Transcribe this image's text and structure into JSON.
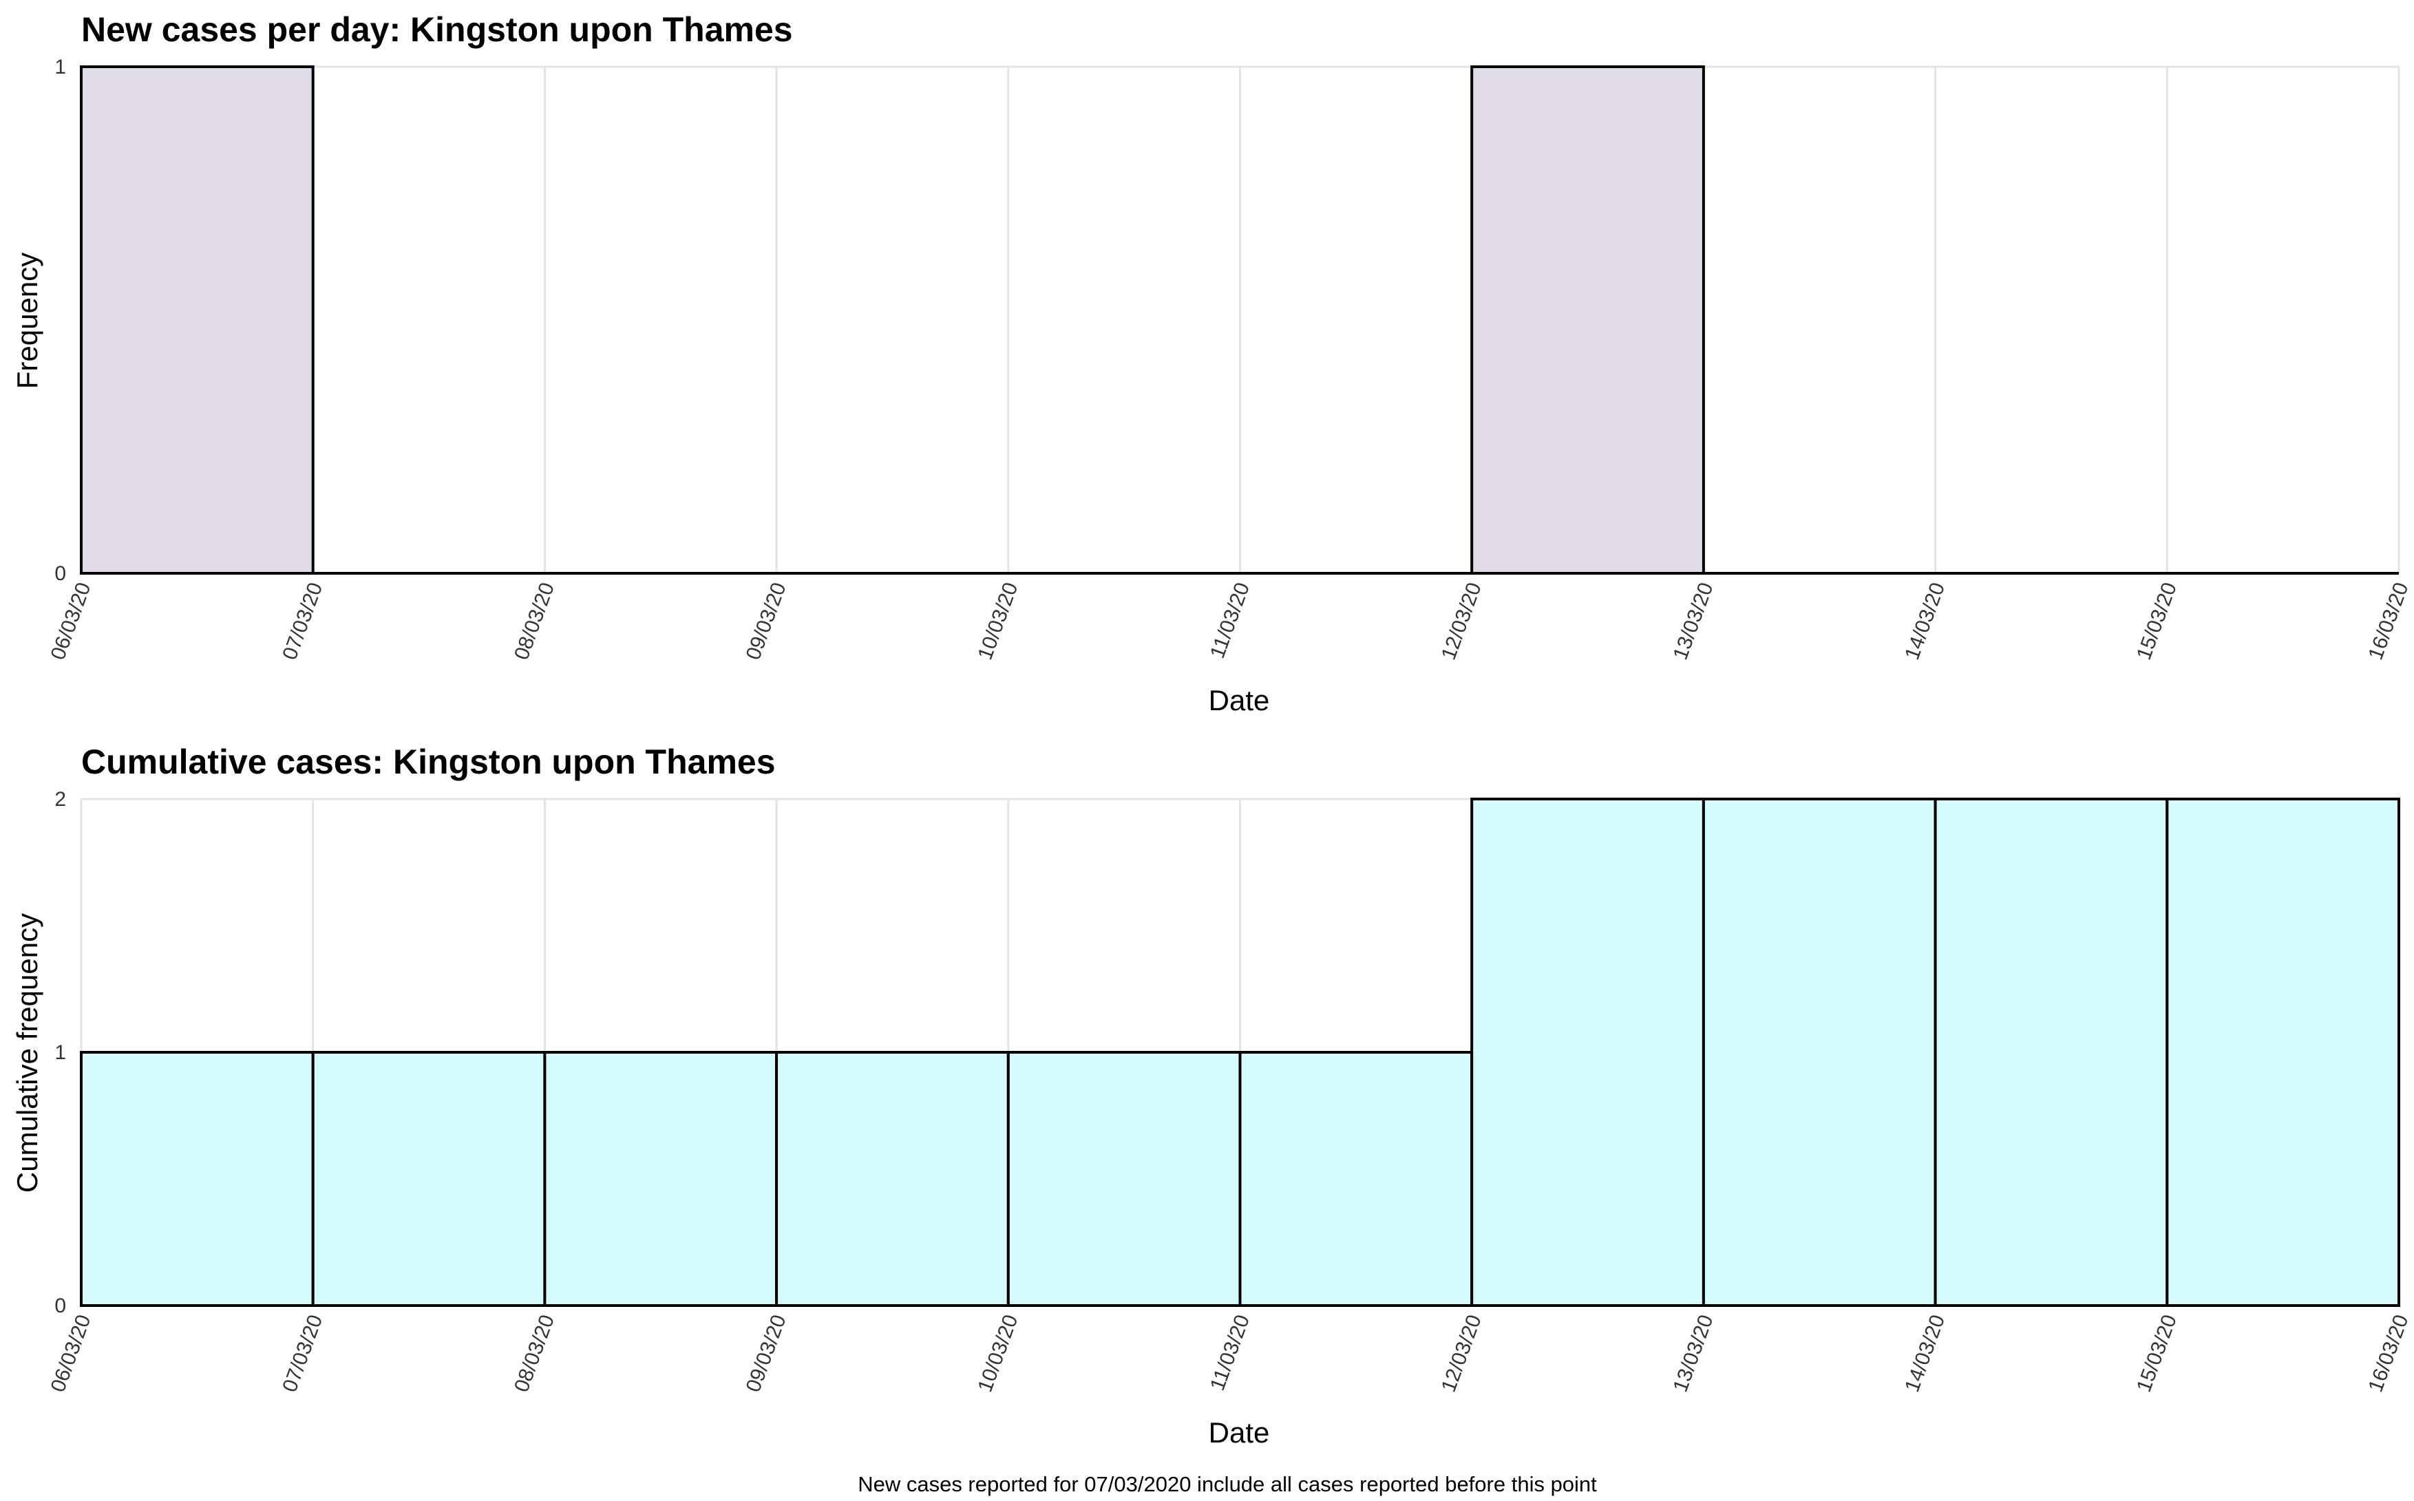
{
  "figure": {
    "footnote": "New cases reported for 07/03/2020 include all cases reported before this point"
  },
  "colors": {
    "daily_fill": "#e0dae9",
    "cumulative_fill": "#d6fbfc",
    "bar_stroke": "#000000",
    "grid": "#e3e3e3",
    "axis": "#000000"
  },
  "chart_data": [
    {
      "type": "bar",
      "title": "New cases per day: Kingston upon Thames",
      "xlabel": "Date",
      "ylabel": "Frequency",
      "x_ticks": [
        "06/03/20",
        "07/03/20",
        "08/03/20",
        "09/03/20",
        "10/03/20",
        "11/03/20",
        "12/03/20",
        "13/03/20",
        "14/03/20",
        "15/03/20",
        "16/03/20"
      ],
      "y_ticks": [
        0,
        1
      ],
      "ylim": [
        0,
        1
      ],
      "grid": true,
      "bins": [
        {
          "start": "06/03/20",
          "end": "07/03/20",
          "value": 1
        },
        {
          "start": "07/03/20",
          "end": "08/03/20",
          "value": 0
        },
        {
          "start": "08/03/20",
          "end": "09/03/20",
          "value": 0
        },
        {
          "start": "09/03/20",
          "end": "10/03/20",
          "value": 0
        },
        {
          "start": "10/03/20",
          "end": "11/03/20",
          "value": 0
        },
        {
          "start": "11/03/20",
          "end": "12/03/20",
          "value": 0
        },
        {
          "start": "12/03/20",
          "end": "13/03/20",
          "value": 1
        },
        {
          "start": "13/03/20",
          "end": "14/03/20",
          "value": 0
        },
        {
          "start": "14/03/20",
          "end": "15/03/20",
          "value": 0
        },
        {
          "start": "15/03/20",
          "end": "16/03/20",
          "value": 0
        }
      ]
    },
    {
      "type": "bar",
      "title": "Cumulative cases: Kingston upon Thames",
      "xlabel": "Date",
      "ylabel": "Cumulative frequency",
      "x_ticks": [
        "06/03/20",
        "07/03/20",
        "08/03/20",
        "09/03/20",
        "10/03/20",
        "11/03/20",
        "12/03/20",
        "13/03/20",
        "14/03/20",
        "15/03/20",
        "16/03/20"
      ],
      "y_ticks": [
        0,
        1,
        2
      ],
      "ylim": [
        0,
        2
      ],
      "grid": true,
      "bins": [
        {
          "start": "06/03/20",
          "end": "07/03/20",
          "value": 1
        },
        {
          "start": "07/03/20",
          "end": "08/03/20",
          "value": 1
        },
        {
          "start": "08/03/20",
          "end": "09/03/20",
          "value": 1
        },
        {
          "start": "09/03/20",
          "end": "10/03/20",
          "value": 1
        },
        {
          "start": "10/03/20",
          "end": "11/03/20",
          "value": 1
        },
        {
          "start": "11/03/20",
          "end": "12/03/20",
          "value": 1
        },
        {
          "start": "12/03/20",
          "end": "13/03/20",
          "value": 2
        },
        {
          "start": "13/03/20",
          "end": "14/03/20",
          "value": 2
        },
        {
          "start": "14/03/20",
          "end": "15/03/20",
          "value": 2
        },
        {
          "start": "15/03/20",
          "end": "16/03/20",
          "value": 2
        }
      ]
    }
  ]
}
